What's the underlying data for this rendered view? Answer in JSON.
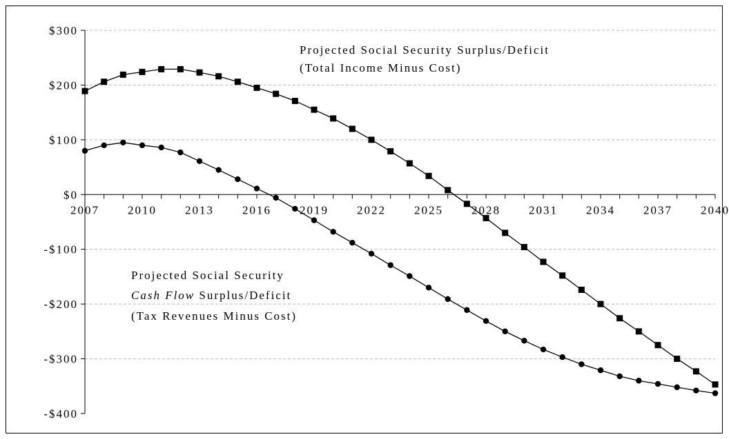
{
  "chart_data": {
    "type": "line",
    "title": "",
    "xlabel": "",
    "ylabel": "",
    "ylim": [
      -400,
      300
    ],
    "xlim": [
      2007,
      2040
    ],
    "y_ticks": [
      300,
      200,
      100,
      0,
      -100,
      -200,
      -300,
      -400
    ],
    "y_tick_labels": [
      "$300",
      "$200",
      "$100",
      "$0",
      "-$100",
      "-$200",
      "-$300",
      "-$400"
    ],
    "x_tick_labels": [
      "2007",
      "2010",
      "2013",
      "2016",
      "2019",
      "2022",
      "2025",
      "2028",
      "2031",
      "2034",
      "2037",
      "2040"
    ],
    "x": [
      2007,
      2008,
      2009,
      2010,
      2011,
      2012,
      2013,
      2014,
      2015,
      2016,
      2017,
      2018,
      2019,
      2020,
      2021,
      2022,
      2023,
      2024,
      2025,
      2026,
      2027,
      2028,
      2029,
      2030,
      2031,
      2032,
      2033,
      2034,
      2035,
      2036,
      2037,
      2038,
      2039,
      2040
    ],
    "grid": "horizontal dashed",
    "series": [
      {
        "marker": "square",
        "values": [
          189,
          206,
          219,
          224,
          229,
          229,
          223,
          216,
          206,
          195,
          184,
          171,
          155,
          139,
          120,
          100,
          79,
          57,
          34,
          8,
          -17,
          -43,
          -70,
          -96,
          -123,
          -148,
          -174,
          -200,
          -226,
          -250,
          -275,
          -300,
          -323,
          -347
        ]
      },
      {
        "marker": "circle",
        "values": [
          80,
          90,
          95,
          90,
          86,
          77,
          61,
          45,
          28,
          11,
          -6,
          -26,
          -47,
          -68,
          -88,
          -108,
          -129,
          -149,
          -170,
          -191,
          -211,
          -231,
          -250,
          -267,
          -283,
          -297,
          -310,
          -321,
          -332,
          -340,
          -346,
          -352,
          -358,
          -363
        ]
      }
    ],
    "annotations": {
      "top_line1": "Projected Social Security Surplus/Deficit",
      "top_line2": "(Total Income Minus Cost)",
      "bottom_line1": "Projected Social Security",
      "bottom_line2_italic": "Cash Flow",
      "bottom_line2_rest": " Surplus/Deficit",
      "bottom_line3": "(Tax Revenues Minus Cost)"
    }
  }
}
